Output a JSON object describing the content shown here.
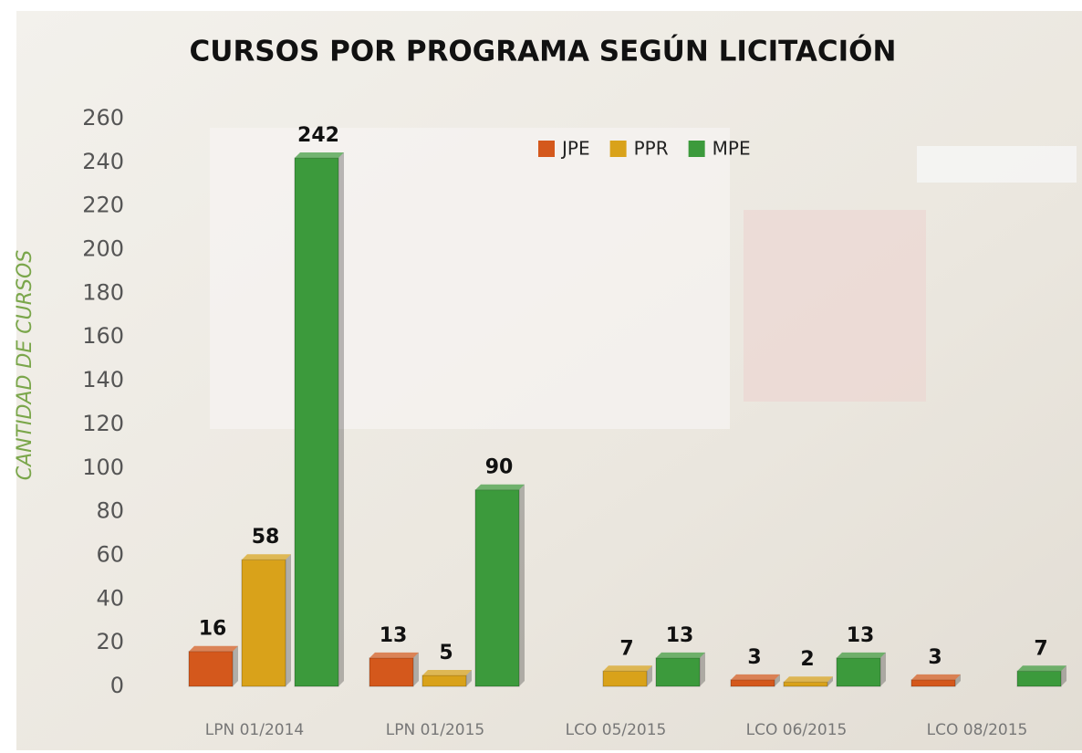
{
  "chart_data": {
    "type": "bar",
    "title": "CURSOS POR PROGRAMA SEGÚN LICITACIÓN",
    "y_label": "CANTIDAD DE CURSOS",
    "categories": [
      "LPN 01/2014",
      "LPN 01/2015",
      "LCO 05/2015",
      "LCO 06/2015",
      "LCO 08/2015"
    ],
    "series": [
      {
        "name": "JPE",
        "color": "#d4581c",
        "values": [
          16,
          13,
          null,
          3,
          3
        ]
      },
      {
        "name": "PPR",
        "color": "#d9a21a",
        "values": [
          58,
          5,
          7,
          2,
          null
        ]
      },
      {
        "name": "MPE",
        "color": "#3c9a3c",
        "values": [
          242,
          90,
          13,
          13,
          7
        ]
      }
    ],
    "ylim": [
      0,
      260
    ],
    "yticks": [
      0,
      20,
      40,
      60,
      80,
      100,
      120,
      140,
      160,
      180,
      200,
      220,
      240,
      260
    ],
    "grid": false,
    "legend": "top"
  }
}
